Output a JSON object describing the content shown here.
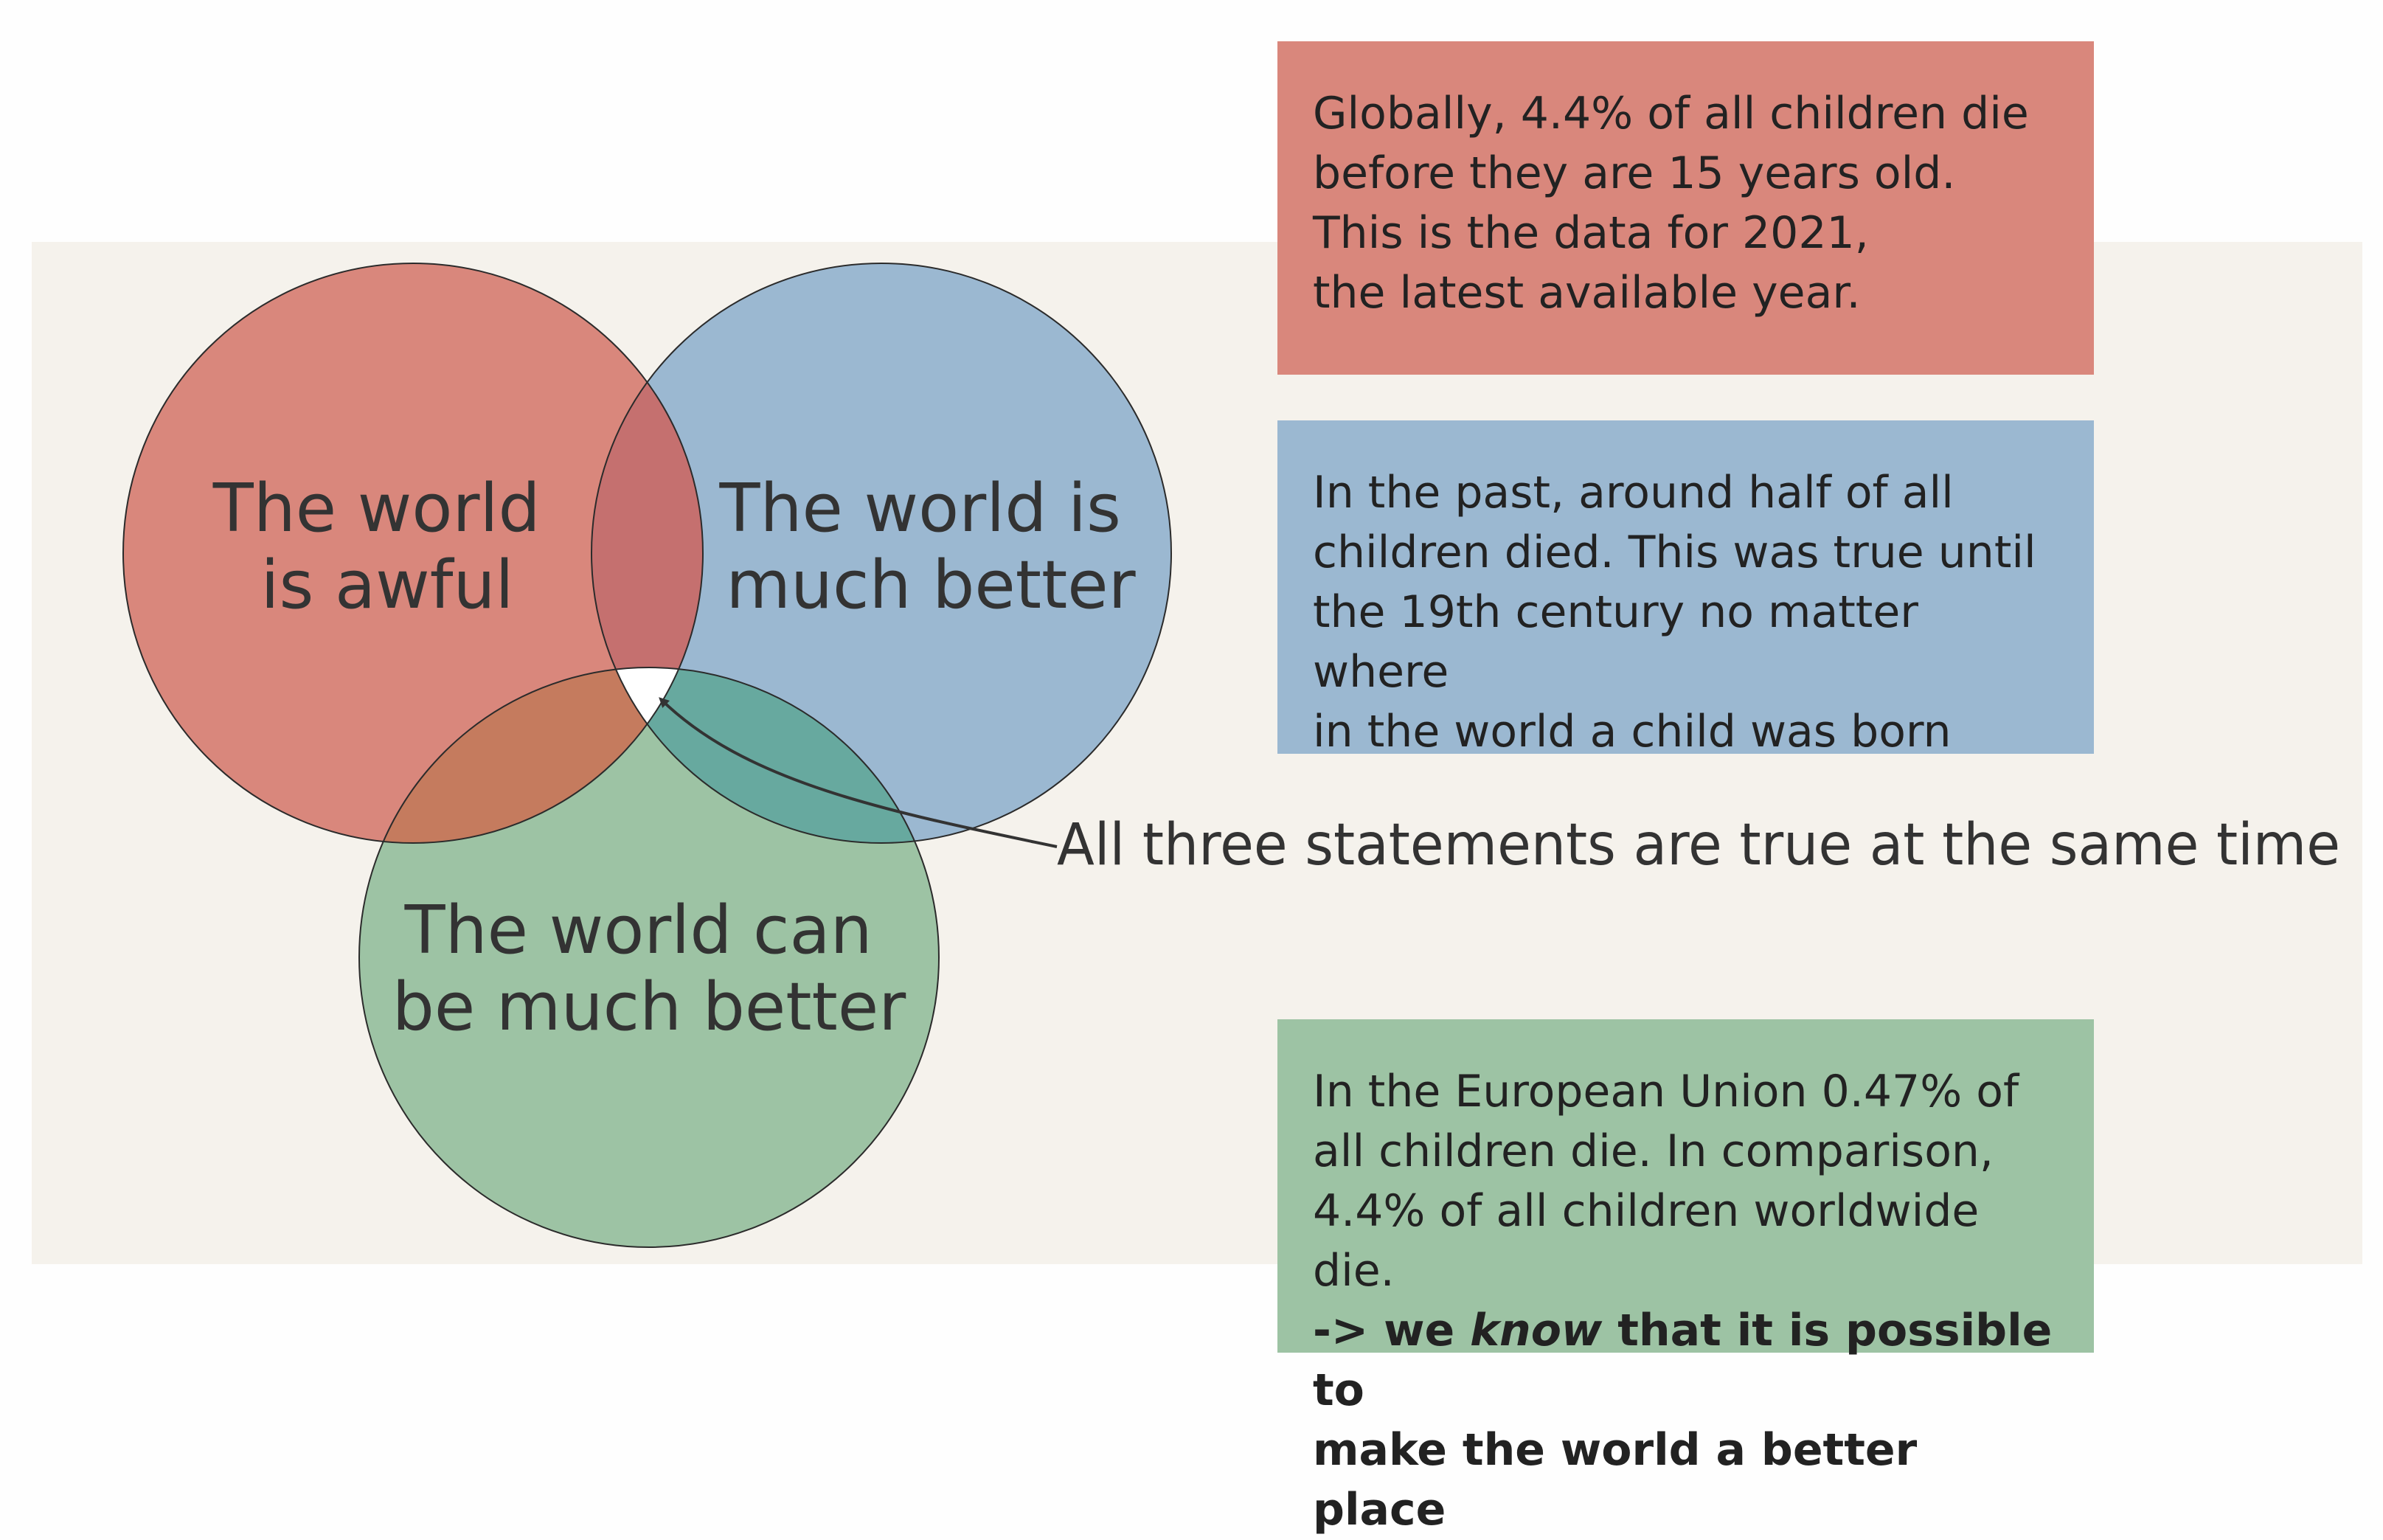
{
  "colors": {
    "red": "#d9877c",
    "blue": "#9bb8d1",
    "green": "#9dc3a4",
    "red_blue": "#c5706f",
    "red_green": "#c57b5e",
    "blue_green": "#67a99f",
    "center": "#ffffff",
    "background_band": "#f5f2ec",
    "text": "#333333"
  },
  "venn": {
    "circle_awful": {
      "label_line1": "The world",
      "label_line2": "is awful"
    },
    "circle_better": {
      "label_line1": "The world is",
      "label_line2": "much better"
    },
    "circle_can_be": {
      "label_line1": "The world can",
      "label_line2": "be much better"
    },
    "callout": "All three statements are true at the same time"
  },
  "boxes": {
    "awful": {
      "lines": [
        "Globally, 4.4% of all children die",
        "before they are 15 years old.",
        "This is the data for 2021,",
        "the latest available year."
      ]
    },
    "better": {
      "lines": [
        "In the past, around half of all",
        "children died. This was true until",
        "the 19th century no matter where",
        "in the world a child was born"
      ]
    },
    "can_be": {
      "lines": [
        "In the European Union 0.47% of",
        "all children die. In comparison,",
        "4.4% of all children worldwide die."
      ],
      "bold_prefix": "-> we ",
      "bold_italic": "know",
      "bold_suffix": " that it is possible to",
      "bold_line2": "make the world a better place"
    }
  }
}
